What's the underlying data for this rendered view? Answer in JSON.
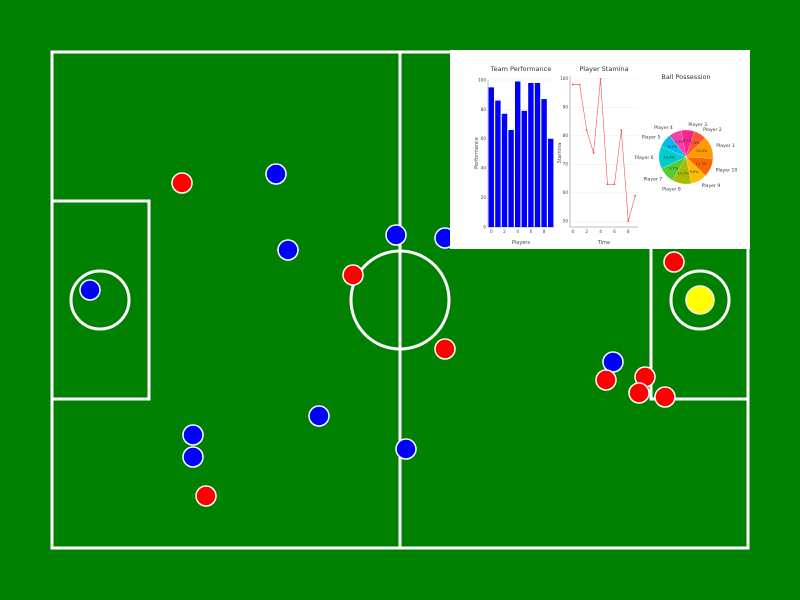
{
  "field": {
    "background_color": "#008000",
    "line_color": "#ffffff"
  },
  "teams": {
    "blue": {
      "color": "#0000ff"
    },
    "red": {
      "color": "#ff0000"
    }
  },
  "ball": {
    "color": "#ffff00"
  },
  "chart_data": [
    {
      "type": "bar",
      "title": "Team Performance",
      "xlabel": "Players",
      "ylabel": "Performance",
      "x": [
        0,
        1,
        2,
        3,
        4,
        5,
        6,
        7,
        8,
        9
      ],
      "values": [
        95,
        86,
        77,
        66,
        99,
        79,
        98,
        98,
        87,
        60
      ],
      "ylim": [
        0,
        100
      ],
      "yticks": [
        0,
        20,
        40,
        60,
        80,
        100
      ],
      "xticks": [
        0,
        2,
        4,
        6,
        8
      ],
      "color": "#0000ff"
    },
    {
      "type": "line",
      "title": "Player Stamina",
      "xlabel": "Time",
      "ylabel": "Stamina",
      "x": [
        0,
        1,
        2,
        3,
        4,
        5,
        6,
        7,
        8,
        9
      ],
      "values": [
        98,
        98,
        82,
        74,
        100,
        63,
        63,
        82,
        50,
        59
      ],
      "ylim": [
        48,
        101
      ],
      "yticks": [
        50,
        60,
        70,
        80,
        90,
        100
      ],
      "xticks": [
        0,
        2,
        4,
        6,
        8
      ],
      "color": "#ff4d4d"
    },
    {
      "type": "pie",
      "title": "Ball Possession",
      "slices": [
        {
          "label": "Player 1",
          "pct": 13.4,
          "color": "#ff9900"
        },
        {
          "label": "Player 10",
          "pct": 11.3,
          "color": "#ff6600"
        },
        {
          "label": "Player 9",
          "pct": 9.6,
          "color": "#ffbb00"
        },
        {
          "label": "Player 8",
          "pct": 11.5,
          "color": "#aabb00"
        },
        {
          "label": "Player 7",
          "pct": 9.7,
          "color": "#55cc33"
        },
        {
          "label": "Player 6",
          "pct": 13.4,
          "color": "#00cccc"
        },
        {
          "label": "Player 5",
          "pct": 8.2,
          "color": "#00bbee"
        },
        {
          "label": "Player 4",
          "pct": 7.5,
          "color": "#ee44aa"
        },
        {
          "label": "Player 3",
          "pct": 8.1,
          "color": "#ff2288"
        },
        {
          "label": "Player 2",
          "pct": 7.3,
          "color": "#ff5533"
        }
      ]
    }
  ]
}
